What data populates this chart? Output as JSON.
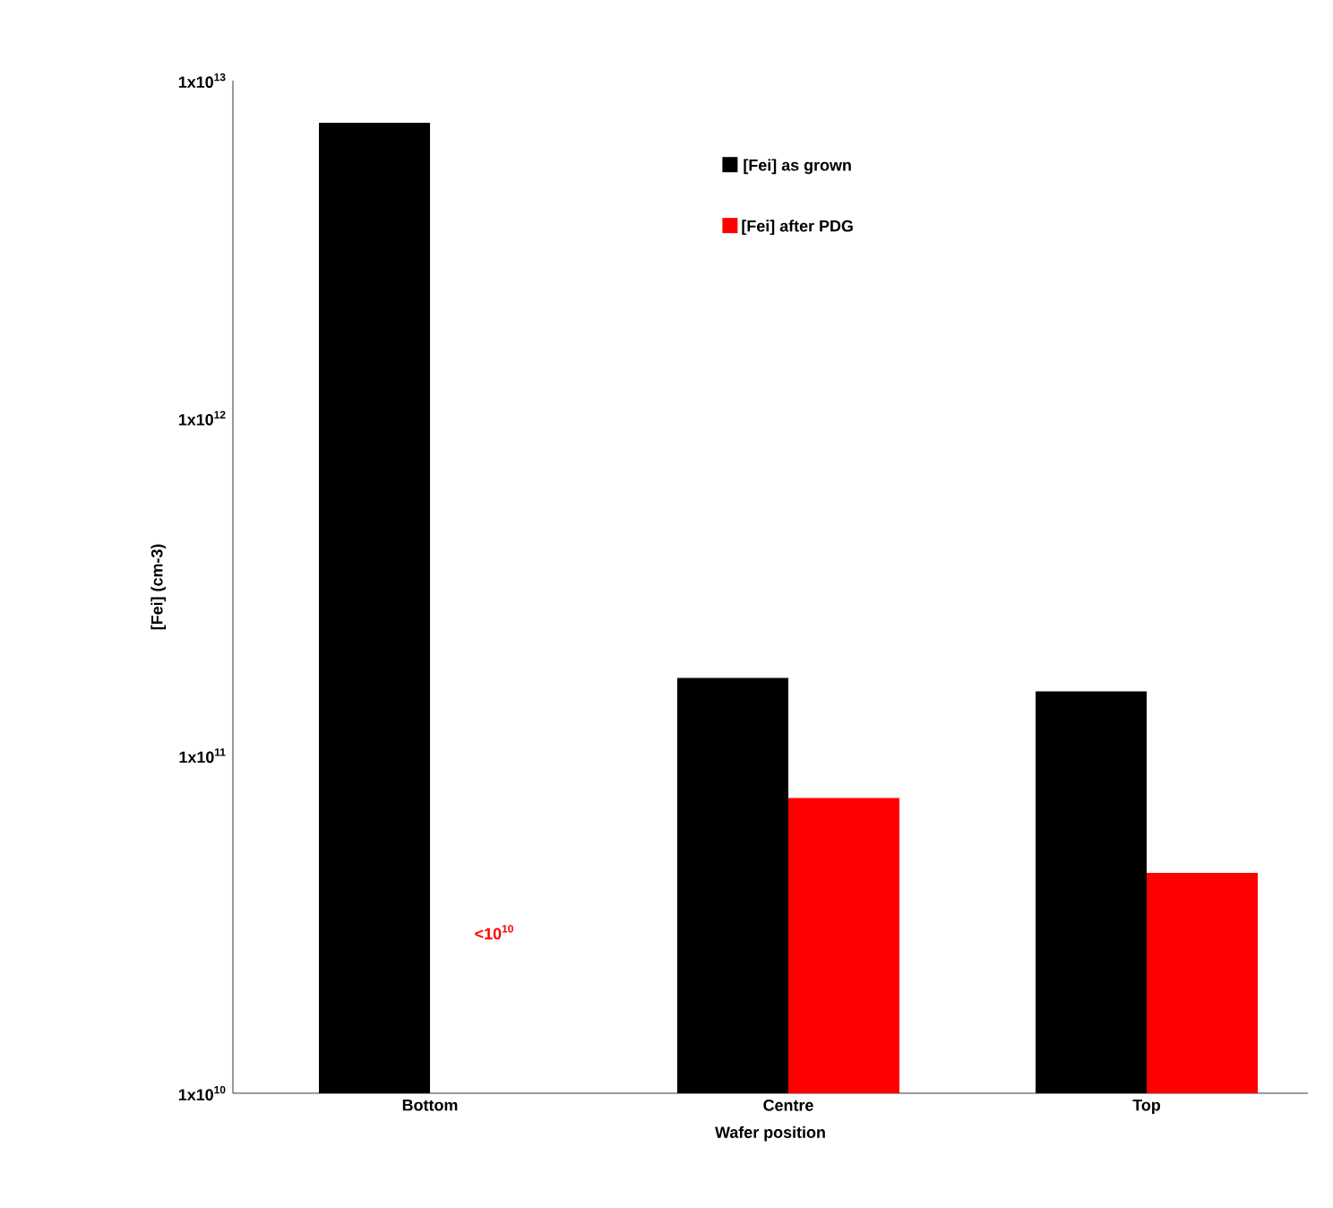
{
  "chart_data": {
    "type": "bar",
    "xlabel": "Wafer position",
    "ylabel": "[Fei] (cm-3)",
    "categories": [
      "Bottom",
      "Centre",
      "Top"
    ],
    "series": [
      {
        "name": "[Fei] as grown",
        "color": "#000000",
        "values": [
          7500000000000.0,
          170000000000.0,
          155000000000.0
        ]
      },
      {
        "name": "[Fei] after PDG",
        "color": "#ff0000",
        "values": [
          null,
          75000000000.0,
          45000000000.0
        ]
      }
    ],
    "log": "y",
    "ylim": [
      10000000000.0,
      10000000000000.0
    ],
    "yticks": [
      {
        "value": 10000000000.0,
        "label": "1x10$^{10}$"
      },
      {
        "value": 100000000000.0,
        "label": "1x10$^{11}$"
      },
      {
        "value": 1000000000000.0,
        "label": "1x10$^{12}$"
      },
      {
        "value": 10000000000000.0,
        "label": "1x10$^{13}$"
      }
    ],
    "legend": "top right",
    "grid": false,
    "annotations": [
      {
        "text": "<10$^{10}$",
        "x": "Bottom",
        "y": 30000000000.0
      }
    ]
  }
}
